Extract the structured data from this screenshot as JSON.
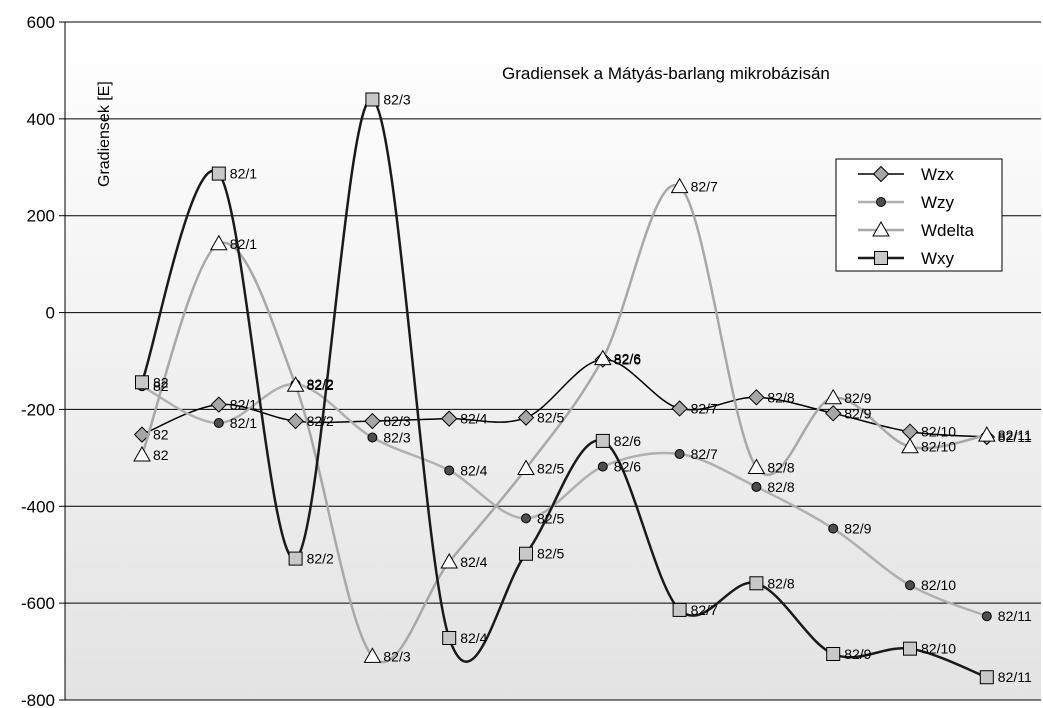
{
  "chart_data": {
    "type": "line",
    "title": "Gradiensek a Mátyás-barlang mikrobázisán",
    "ylabel": "Gradiensek [E]",
    "xlabel": "",
    "ylim": [
      -800,
      600
    ],
    "yticks": [
      600,
      400,
      200,
      0,
      -200,
      -400,
      -600,
      -800
    ],
    "grid": true,
    "legend_position": "top-right",
    "background_gradient": [
      "#ffffff",
      "#e3e3e3"
    ],
    "categories": [
      "82",
      "82/1",
      "82/2",
      "82/3",
      "82/4",
      "82/5",
      "82/6",
      "82/7",
      "82/8",
      "82/9",
      "82/10",
      "82/11"
    ],
    "series": [
      {
        "name": "Wzx",
        "marker": "diamond",
        "line_color": "#000000",
        "marker_fill": "#a6a6a6",
        "line_width": 1.5,
        "values": [
          -252,
          -190,
          -224,
          -224,
          -219,
          -217,
          -97,
          -198,
          -175,
          -208,
          -246,
          -257
        ]
      },
      {
        "name": "Wzy",
        "marker": "circle",
        "line_color": "#b0b0b0",
        "marker_fill": "#4d4d4d",
        "line_width": 2.5,
        "values": [
          -152,
          -228,
          -148,
          -258,
          -326,
          -425,
          -318,
          -292,
          -360,
          -446,
          -563,
          -627
        ]
      },
      {
        "name": "Wdelta",
        "marker": "triangle",
        "line_color": "#a8a8a8",
        "marker_fill": "#ffffff",
        "line_width": 2.5,
        "values": [
          -294,
          142,
          -150,
          -710,
          -515,
          -322,
          -95,
          260,
          -320,
          -176,
          -277,
          -253
        ]
      },
      {
        "name": "Wxy",
        "marker": "square",
        "line_color": "#1a1a1a",
        "marker_fill": "#c8c8c8",
        "line_width": 2.5,
        "values": [
          -144,
          287,
          -508,
          440,
          -672,
          -498,
          -265,
          -614,
          -559,
          -705,
          -694,
          -753
        ]
      }
    ],
    "point_labels": [
      {
        "series": "Wzx",
        "values": [
          "82",
          "82/1",
          "82/2",
          "82/3",
          "82/4",
          "82/5",
          "82/6",
          "82/7",
          "82/8",
          "82/9",
          "82/10",
          "82/11"
        ]
      },
      {
        "series": "Wzy",
        "values": [
          "82",
          "82/1",
          "82/2",
          "82/3",
          "82/4",
          "82/5",
          "82/6",
          "82/7",
          "82/8",
          "82/9",
          "82/10",
          "82/11"
        ]
      },
      {
        "series": "Wdelta",
        "values": [
          "82",
          "82/1",
          "82/2",
          "82/3",
          "82/4",
          "82/5",
          "82/6",
          "82/7",
          "82/8",
          "82/9",
          "82/10",
          "82/11"
        ]
      },
      {
        "series": "Wxy",
        "values": [
          "82",
          "82/1",
          "82/2",
          "82/3",
          "82/4",
          "82/5",
          "82/6",
          "82/7",
          "82/8",
          "82/9",
          "82/10",
          "82/11"
        ]
      }
    ]
  }
}
